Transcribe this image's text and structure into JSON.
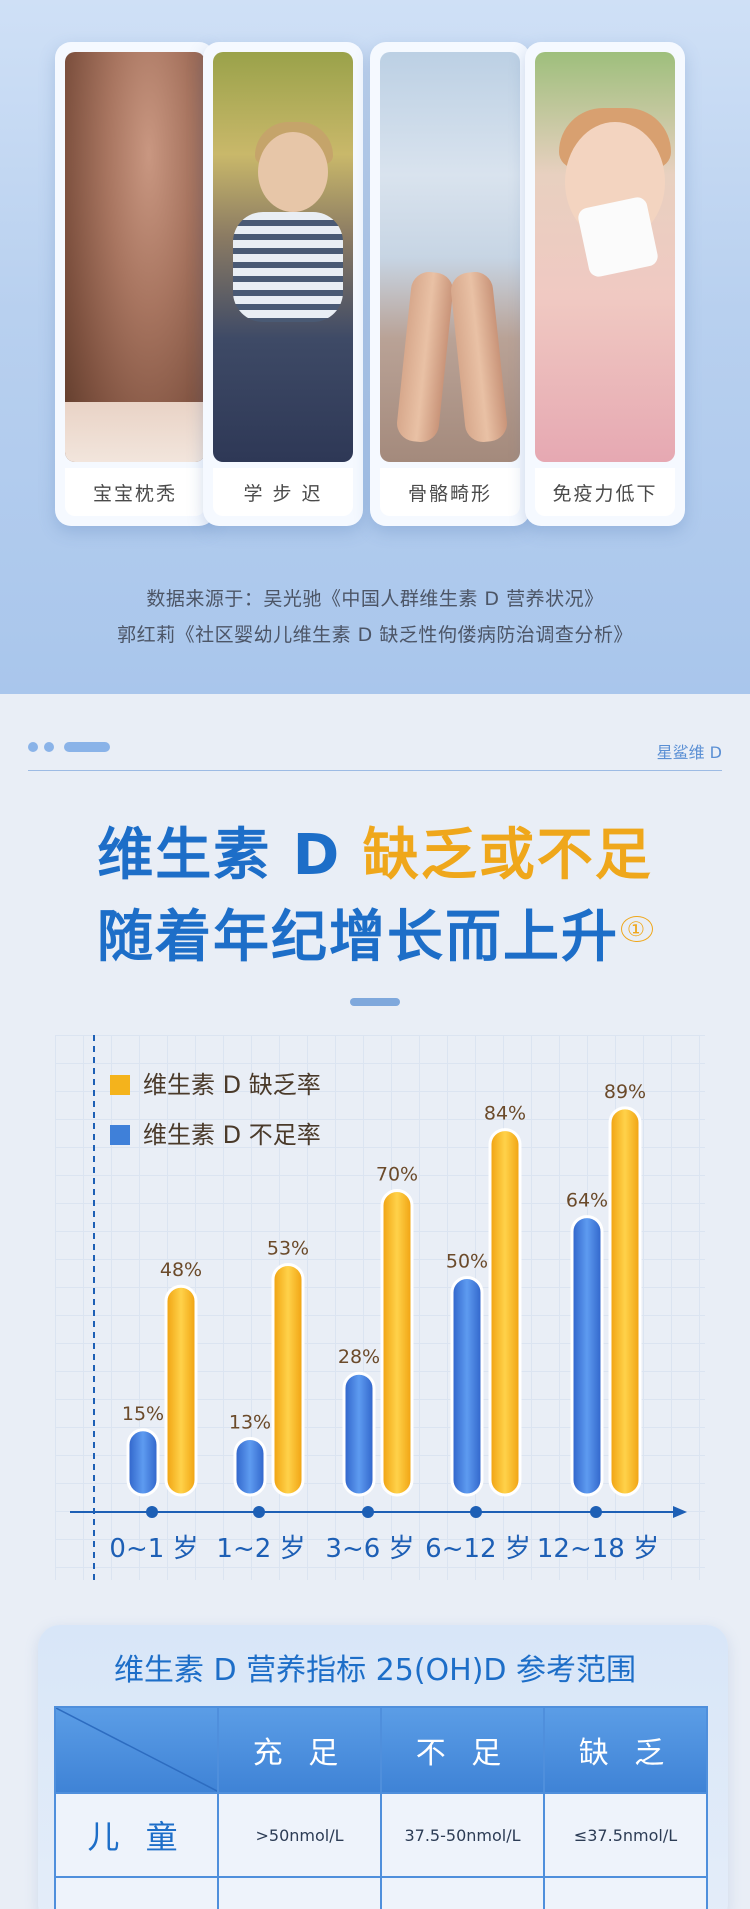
{
  "symptoms": [
    "宝宝枕秃",
    "学 步 迟",
    "骨骼畸形",
    "免疫力低下"
  ],
  "source_lines": [
    "数据来源于：吴光驰《中国人群维生素 D 营养状况》",
    "郭红莉《社区婴幼儿维生素 D 缺乏性佝偻病防治调查分析》"
  ],
  "brand": "星鲨维 D",
  "title": {
    "line1_blue": "维生素 D",
    "line1_orange": "缺乏或不足",
    "line2": "随着年纪增长而上升",
    "footnote": "①"
  },
  "colors": {
    "deficiency": "#f4b31c",
    "insufficiency": "#3f80d9",
    "axis": "#1d5fb5"
  },
  "chart_data": {
    "type": "bar",
    "categories": [
      "0~1 岁",
      "1~2 岁",
      "3~6 岁",
      "6~12 岁",
      "12~18 岁"
    ],
    "series": [
      {
        "name": "维生素 D 不足率",
        "values": [
          15,
          13,
          28,
          50,
          64
        ],
        "labels": [
          "15%",
          "13%",
          "28%",
          "50%",
          "64%"
        ]
      },
      {
        "name": "维生素 D 缺乏率",
        "values": [
          48,
          53,
          70,
          84,
          89
        ],
        "labels": [
          "48%",
          "53%",
          "70%",
          "84%",
          "89%"
        ]
      }
    ],
    "legend": [
      "维生素 D 缺乏率",
      "维生素 D 不足率"
    ],
    "legend_position": "top-left",
    "ylim": [
      0,
      100
    ],
    "grid": true
  },
  "table": {
    "title": "维生素 D 营养指标 25(OH)D 参考范围",
    "headers": [
      "充 足",
      "不 足",
      "缺 乏"
    ],
    "rows": [
      {
        "label": "儿 童",
        "cells": [
          ">50nmol/L",
          "37.5-50nmol/L",
          "≤37.5nmol/L"
        ]
      },
      {
        "label": "",
        "cells": [
          "",
          "",
          ""
        ]
      }
    ]
  }
}
